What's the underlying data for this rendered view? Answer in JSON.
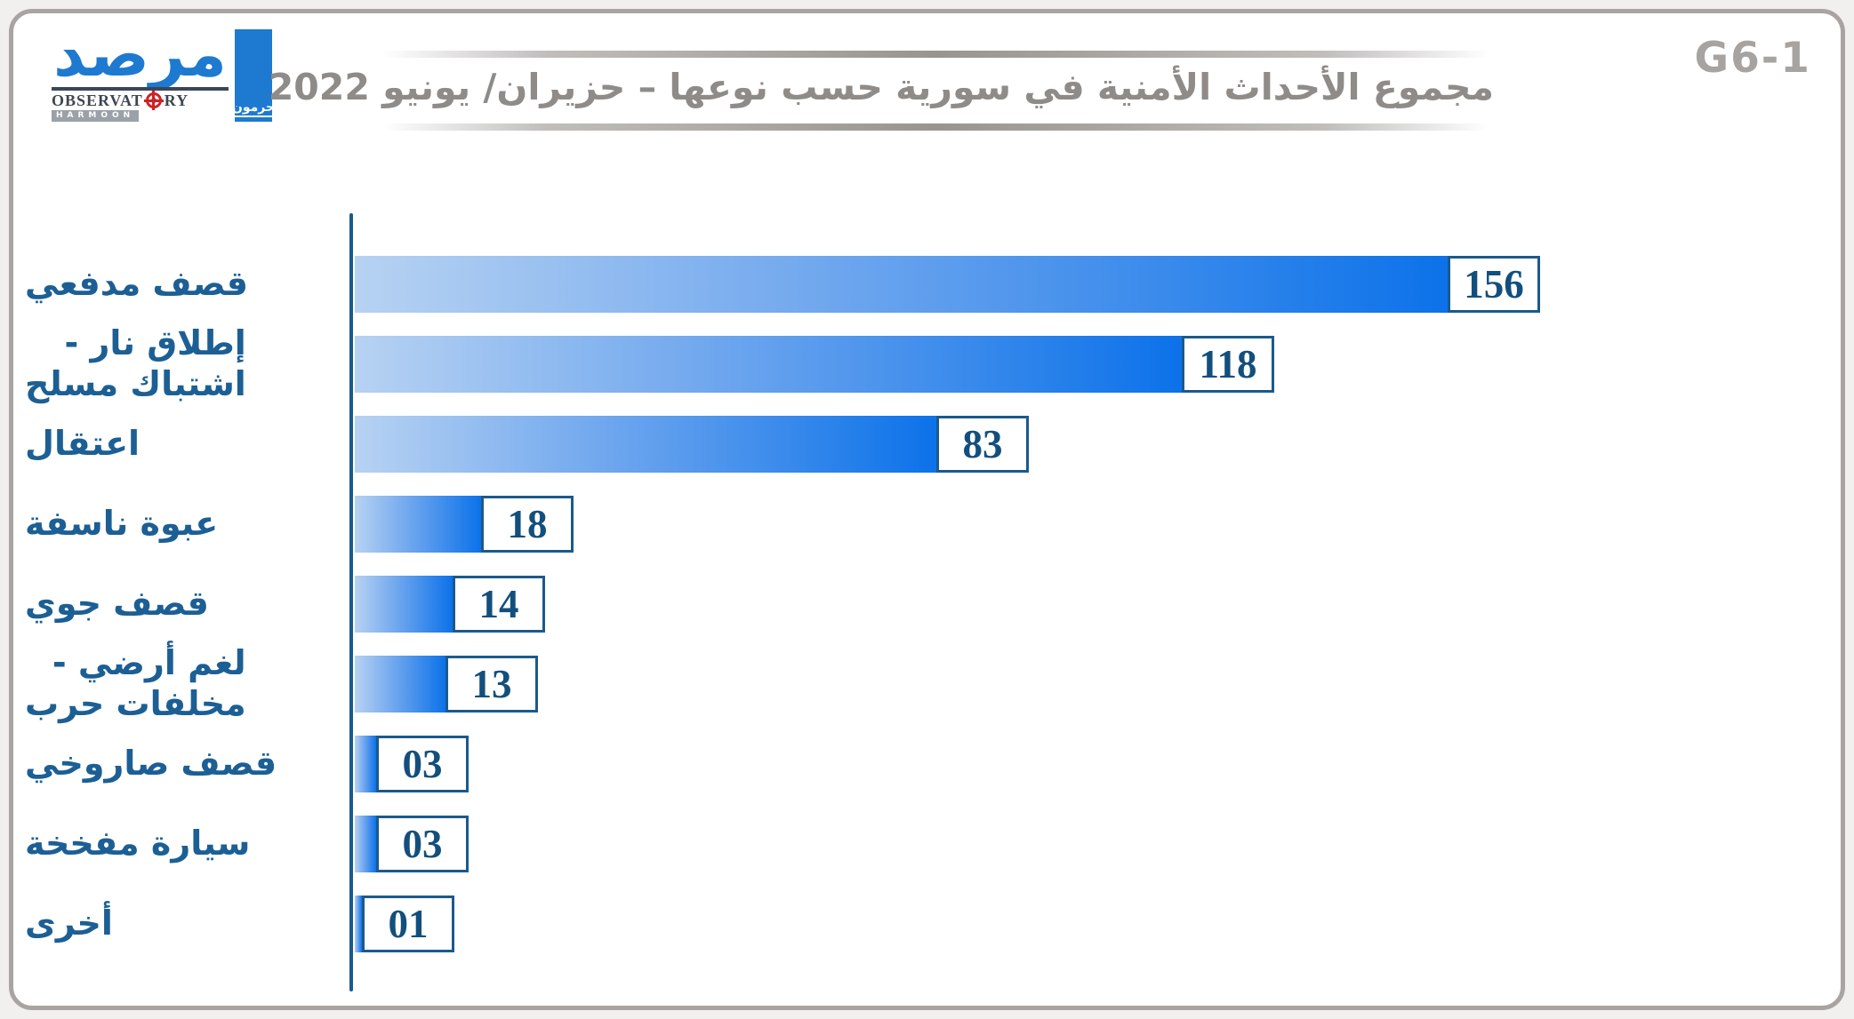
{
  "figure_id": "G6-1",
  "logo": {
    "wordmark": "مرصد",
    "observatory_left": "OBSERVAT",
    "observatory_right": "RY",
    "harmoon_latin": "HARMOON",
    "harmoon_arabic": "حرمون",
    "brand_blue": "#1d7ad0",
    "target_red": "#cf2127"
  },
  "title": {
    "text": "مجموع الأحداث الأمنية في سورية حسب نوعها – حزيران/ يونيو 2022"
  },
  "chart_data": {
    "type": "bar",
    "orientation": "horizontal",
    "title": "مجموع الأحداث الأمنية في سورية حسب نوعها – حزيران/ يونيو 2022",
    "categories": [
      "قصف مدفعي",
      "إطلاق نار -\nاشتباك مسلح",
      "اعتقال",
      "عبوة ناسفة",
      "قصف جوي",
      "لغم أرضي -\nمخلفات حرب",
      "قصف صاروخي",
      "سيارة مفخخة",
      "أخرى"
    ],
    "values": [
      156,
      118,
      83,
      18,
      14,
      13,
      3,
      3,
      1
    ],
    "value_labels": [
      "156",
      "118",
      "83",
      "18",
      "14",
      "13",
      "03",
      "03",
      "01"
    ],
    "xlim": [
      0,
      160
    ],
    "grid": false,
    "legend": false,
    "bar_gradient": [
      "#b7d2f2",
      "#0c72e9"
    ],
    "axis_color": "#1a5a8c",
    "label_color": "#1c5f95",
    "value_text_color": "#134f7d"
  }
}
